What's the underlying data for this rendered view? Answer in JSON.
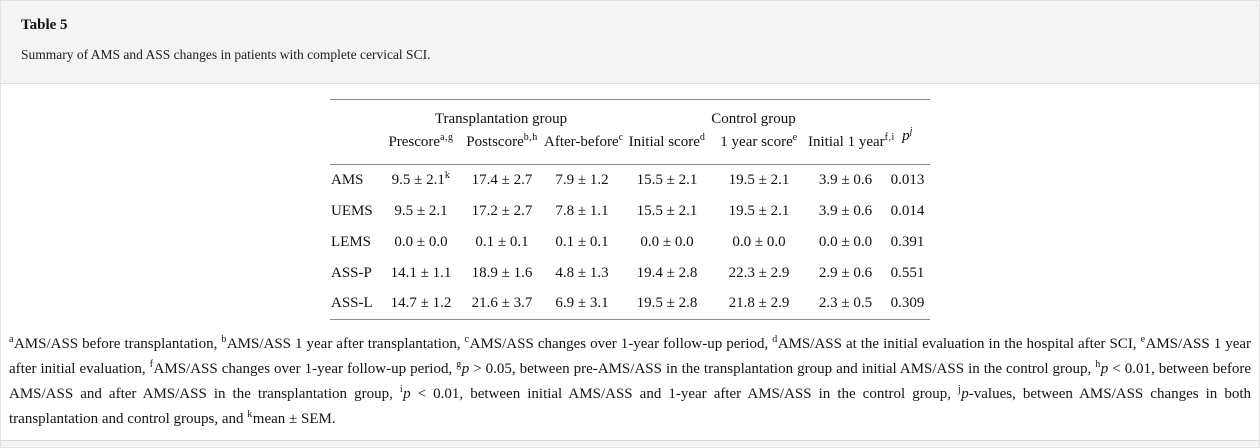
{
  "page": {
    "title": "Table 5",
    "caption": "Summary of AMS and ASS changes in patients with complete cervical SCI."
  },
  "colors": {
    "band_background": "#f4f4f4",
    "card_background": "#ffffff",
    "table_rule": "#8c8c8c",
    "divider": "#dcdcdc",
    "text": "#141414"
  },
  "table": {
    "group_headers": [
      {
        "label": "Transplantation group",
        "span": 3
      },
      {
        "label": "Control group",
        "span": 3
      }
    ],
    "p_header": "p^j",
    "column_headers": [
      "Prescore^a,g",
      "Postscore^b,h",
      "After-before^c",
      "Initial score^d",
      "1 year score^e",
      "Initial 1 year^f,i"
    ],
    "rows": [
      {
        "label": "AMS",
        "values": [
          "9.5 ± 2.1^k",
          "17.4 ± 2.7",
          "7.9 ± 1.2",
          "15.5 ± 2.1",
          "19.5 ± 2.1",
          "3.9 ± 0.6",
          "0.013"
        ]
      },
      {
        "label": "UEMS",
        "values": [
          "9.5 ± 2.1",
          "17.2 ± 2.7",
          "7.8 ± 1.1",
          "15.5 ± 2.1",
          "19.5 ± 2.1",
          "3.9 ± 0.6",
          "0.014"
        ]
      },
      {
        "label": "LEMS",
        "values": [
          "0.0 ± 0.0",
          "0.1 ± 0.1",
          "0.1 ± 0.1",
          "0.0 ± 0.0",
          "0.0 ± 0.0",
          "0.0 ± 0.0",
          "0.391"
        ]
      },
      {
        "label": "ASS-P",
        "values": [
          "14.1 ± 1.1",
          "18.9 ± 1.6",
          "4.8 ± 1.3",
          "19.4 ± 2.8",
          "22.3 ± 2.9",
          "2.9 ± 0.6",
          "0.551"
        ]
      },
      {
        "label": "ASS-L",
        "values": [
          "14.7 ± 1.2",
          "21.6 ± 3.7",
          "6.9 ± 3.1",
          "19.5 ± 2.8",
          "21.8 ± 2.9",
          "2.3 ± 0.5",
          "0.309"
        ]
      }
    ]
  },
  "footnotes": [
    {
      "sup": "a",
      "text": "AMS/ASS before transplantation, "
    },
    {
      "sup": "b",
      "text": "AMS/ASS 1 year after transplantation, "
    },
    {
      "sup": "c",
      "text": "AMS/ASS changes over 1-year follow-up period, "
    },
    {
      "sup": "d",
      "text": "AMS/ASS at the initial evaluation in the hospital after SCI, "
    },
    {
      "sup": "e",
      "text": "AMS/ASS 1 year after initial evaluation, "
    },
    {
      "sup": "f",
      "text": "AMS/ASS changes over 1-year follow-up period, "
    },
    {
      "sup": "g",
      "italic": "p",
      "text": " > 0.05, between pre-AMS/ASS in the transplantation group and initial AMS/ASS in the control group, "
    },
    {
      "sup": "h",
      "italic": "p",
      "text": " < 0.01, between before AMS/ASS and after AMS/ASS in the transplantation group, "
    },
    {
      "sup": "i",
      "italic": "p",
      "text": " < 0.01, between initial AMS/ASS and 1-year after AMS/ASS in the control group, "
    },
    {
      "sup": "j",
      "italic": "p",
      "text": "-values, between AMS/ASS changes in both transplantation and control groups, and "
    },
    {
      "sup": "k",
      "text": "mean ± SEM."
    }
  ]
}
